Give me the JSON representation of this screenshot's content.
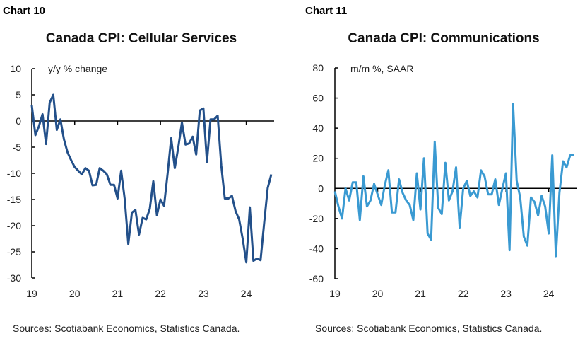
{
  "chart_data": [
    {
      "type": "line",
      "label": "Chart 10",
      "title": "Canada CPI: Cellular Services",
      "ylabel": "y/y % change",
      "xlabel": "",
      "ylim": [
        -30,
        10
      ],
      "yticks": [
        "10",
        "5",
        "0",
        "-5",
        "-10",
        "-15",
        "-20",
        "-25",
        "-30"
      ],
      "xticks": [
        "19",
        "20",
        "21",
        "22",
        "23",
        "24"
      ],
      "frequency": "monthly",
      "color": "#23508a",
      "grid": false,
      "values": [
        3,
        -2.7,
        -1,
        1.3,
        -4.4,
        3.5,
        5,
        -1.7,
        0.3,
        -3.5,
        -6,
        -7.5,
        -8.8,
        -9.5,
        -10.2,
        -9,
        -9.5,
        -12.3,
        -12.2,
        -9,
        -9.5,
        -10.2,
        -12.2,
        -12.2,
        -14.8,
        -9.5,
        -15,
        -23.5,
        -17.5,
        -17,
        -21.7,
        -18.5,
        -18.8,
        -16.8,
        -11.5,
        -18,
        -15,
        -16.2,
        -10,
        -3.3,
        -9,
        -5,
        -0.3,
        -4.5,
        -4.3,
        -3,
        -6.4,
        2,
        2.4,
        -7.8,
        0.3,
        0.3,
        1,
        -8.5,
        -14.8,
        -14.8,
        -14.3,
        -17.2,
        -18.8,
        -22.5,
        -27,
        -16.5,
        -26.7,
        -26.3,
        -26.6,
        -19.5,
        -12.8,
        -10.2
      ],
      "source": "Sources: Scotiabank Economics, Statistics Canada."
    },
    {
      "type": "line",
      "label": "Chart 11",
      "title": "Canada CPI: Communications",
      "ylabel": "m/m %, SAAR",
      "xlabel": "",
      "ylim": [
        -60,
        80
      ],
      "yticks": [
        "80",
        "60",
        "40",
        "20",
        "0",
        "-20",
        "-40",
        "-60"
      ],
      "xticks": [
        "19",
        "20",
        "21",
        "22",
        "23",
        "24"
      ],
      "frequency": "monthly",
      "color": "#3a9ad2",
      "grid": false,
      "values": [
        -2,
        -12,
        -20,
        0,
        -8,
        4,
        4,
        -21,
        8,
        -12,
        -8,
        3,
        -4,
        -11,
        2,
        12,
        -16,
        -16,
        6,
        -3,
        -8,
        -11,
        -21,
        10,
        -14,
        20,
        -30,
        -34,
        31,
        -13,
        -17,
        17,
        -8,
        -2,
        14,
        -26,
        0,
        5,
        -5,
        -2,
        -6,
        12,
        8,
        -4,
        -4,
        6,
        -11,
        0,
        10,
        -41,
        56,
        5,
        -6,
        -32,
        -38,
        -6,
        -9,
        -18,
        -5,
        -12,
        -30,
        22,
        -45,
        -3,
        18,
        14,
        22,
        22
      ],
      "source": "Sources: Scotiabank Economics, Statistics Canada."
    }
  ]
}
